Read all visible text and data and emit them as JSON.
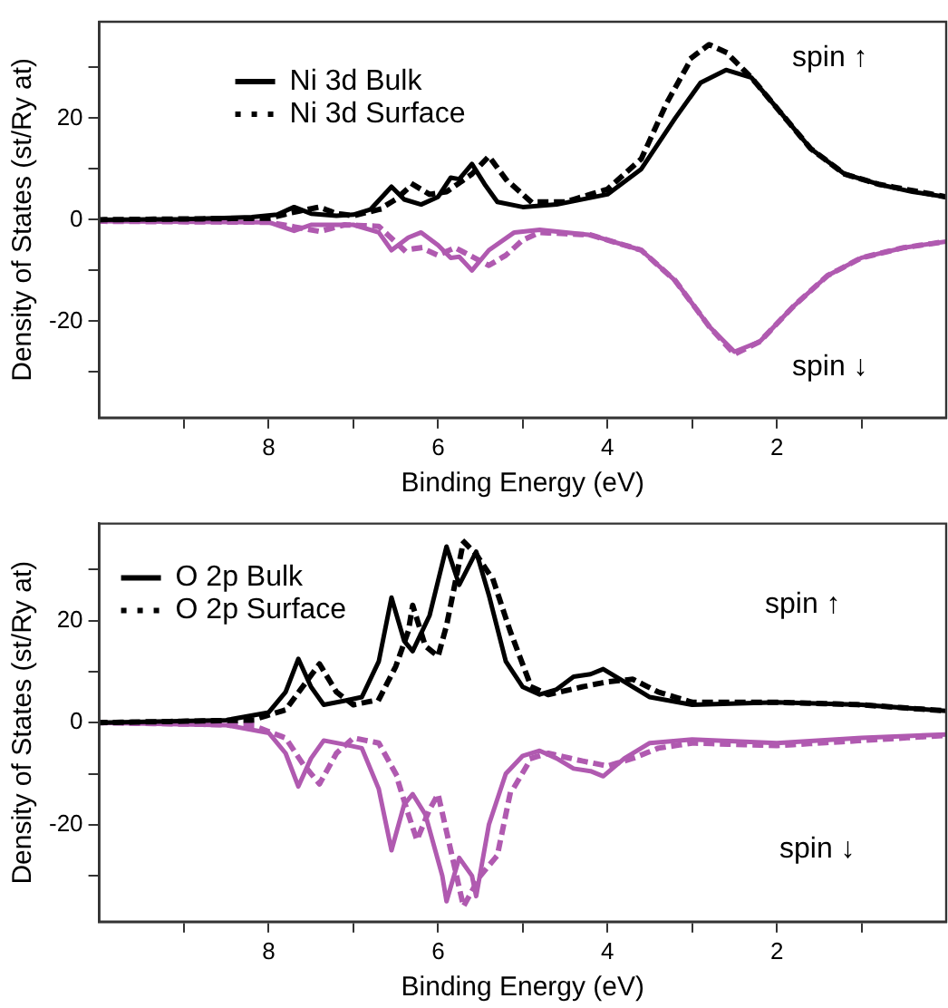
{
  "chart_data": [
    {
      "type": "line",
      "xlabel": "Binding Energy (eV)",
      "ylabel": "Density of States (st/Ry at)",
      "xlim": [
        10,
        0
      ],
      "ylim": [
        -39,
        39
      ],
      "xticks": [
        {
          "value": 9,
          "label": null
        },
        8,
        {
          "value": 7,
          "label": null
        },
        6,
        {
          "value": 5,
          "label": null
        },
        4,
        {
          "value": 3,
          "label": null
        },
        2,
        {
          "value": 1,
          "label": null
        }
      ],
      "yticks": [
        {
          "value": -30,
          "label": null
        },
        -20,
        {
          "value": -10,
          "label": null
        },
        0,
        {
          "value": 10,
          "label": null
        },
        20,
        {
          "value": 30,
          "label": null
        }
      ],
      "grid": false,
      "legend": "top left",
      "marker": "none",
      "annotations": [
        "spin ↑",
        "spin ↓"
      ],
      "series": [
        {
          "name": "Ni 3d Bulk",
          "color": "#000000",
          "line_style": "solid",
          "x": [
            10,
            9,
            8.2,
            7.9,
            7.7,
            7.5,
            7.2,
            7,
            6.8,
            6.55,
            6.4,
            6.2,
            6.0,
            5.85,
            5.75,
            5.6,
            5.45,
            5.3,
            5.0,
            4.6,
            4.0,
            3.6,
            3.2,
            2.9,
            2.6,
            2.3,
            2.0,
            1.6,
            1.2,
            0.8,
            0.4,
            0
          ],
          "values": [
            0,
            0.1,
            0.5,
            1,
            2.5,
            1.2,
            0.8,
            1,
            2,
            6.5,
            4,
            3,
            4.5,
            8.3,
            8,
            11,
            7,
            3.5,
            2.5,
            3,
            5,
            10,
            20,
            27,
            29.5,
            28,
            22,
            14,
            9,
            7,
            5.5,
            4.5
          ]
        },
        {
          "name": "Ni 3d Surface",
          "color": "#000000",
          "line_style": "dotted",
          "x": [
            10,
            8,
            7.7,
            7.4,
            7.2,
            7,
            6.7,
            6.5,
            6.3,
            6.1,
            5.9,
            5.6,
            5.4,
            5.2,
            4.9,
            4.5,
            4.0,
            3.6,
            3.3,
            3.0,
            2.8,
            2.6,
            2.3,
            2.0,
            1.6,
            1.2,
            0.8,
            0
          ],
          "values": [
            0,
            0.3,
            1.5,
            2.5,
            1.2,
            0.8,
            2,
            4,
            7,
            5,
            5.5,
            9,
            12.5,
            8,
            3.5,
            3.5,
            6,
            12,
            23,
            32,
            34.5,
            33,
            28,
            22,
            14,
            9,
            7,
            4.5
          ]
        },
        {
          "color": "#b05ab0",
          "line_style": "solid",
          "x": [
            10,
            8,
            7.7,
            7.5,
            7,
            6.7,
            6.55,
            6.35,
            6.2,
            6.0,
            5.85,
            5.75,
            5.6,
            5.4,
            5.1,
            4.8,
            4.2,
            3.6,
            3.2,
            2.8,
            2.5,
            2.2,
            1.8,
            1.4,
            1.0,
            0.5,
            0
          ],
          "values": [
            -0.3,
            -0.5,
            -2.2,
            -1,
            -1,
            -2.5,
            -6,
            -3.5,
            -2.5,
            -5,
            -7.5,
            -7.3,
            -10,
            -6,
            -2.5,
            -2,
            -3,
            -6,
            -12,
            -21,
            -26,
            -24,
            -17,
            -11,
            -7.5,
            -5.5,
            -4.3
          ]
        },
        {
          "color": "#b05ab0",
          "line_style": "dotted",
          "x": [
            10,
            8,
            7.4,
            7.1,
            6.7,
            6.4,
            6.2,
            6.0,
            5.8,
            5.4,
            5.2,
            5.0,
            4.8,
            4.2,
            3.6,
            3.2,
            2.8,
            2.5,
            2.2,
            1.8,
            1.4,
            1.0,
            0.5,
            0
          ],
          "values": [
            -0.3,
            -0.5,
            -2.3,
            -1,
            -1.3,
            -6,
            -5.5,
            -7,
            -5.5,
            -9,
            -7,
            -4,
            -2.5,
            -3,
            -6,
            -12,
            -21,
            -26.5,
            -24,
            -17,
            -11,
            -7.5,
            -5.5,
            -4.3
          ]
        }
      ]
    },
    {
      "type": "line",
      "xlabel": "Binding Energy (eV)",
      "ylabel": "Density of States (st/Ry at)",
      "xlim": [
        10,
        0
      ],
      "ylim": [
        -39,
        39
      ],
      "xticks": [
        {
          "value": 9,
          "label": null
        },
        8,
        {
          "value": 7,
          "label": null
        },
        6,
        {
          "value": 5,
          "label": null
        },
        4,
        {
          "value": 3,
          "label": null
        },
        2,
        {
          "value": 1,
          "label": null
        }
      ],
      "yticks": [
        {
          "value": -30,
          "label": null
        },
        -20,
        {
          "value": -10,
          "label": null
        },
        0,
        {
          "value": 10,
          "label": null
        },
        20,
        {
          "value": 30,
          "label": null
        }
      ],
      "grid": false,
      "legend": "top left",
      "marker": "none",
      "annotations": [
        "spin ↑",
        "spin ↓"
      ],
      "series": [
        {
          "name": "O 2p Bulk",
          "color": "#000000",
          "line_style": "solid",
          "x": [
            10,
            8.5,
            8.0,
            7.8,
            7.65,
            7.5,
            7.35,
            7.1,
            6.9,
            6.7,
            6.55,
            6.4,
            6.3,
            6.1,
            5.9,
            5.75,
            5.55,
            5.4,
            5.2,
            5.0,
            4.8,
            4.6,
            4.4,
            4.2,
            4.05,
            3.8,
            3.5,
            3.0,
            2.0,
            1.0,
            0
          ],
          "values": [
            0,
            0.5,
            2,
            6,
            12.5,
            7,
            3.5,
            4.3,
            5,
            12,
            24.5,
            16,
            14,
            21,
            34.5,
            27,
            33.5,
            25,
            12,
            7,
            5.5,
            6.5,
            9,
            9.5,
            10.5,
            8,
            5,
            3.5,
            4,
            3.5,
            2.3
          ]
        },
        {
          "name": "O 2p Surface",
          "color": "#000000",
          "line_style": "dotted",
          "x": [
            10,
            8.2,
            7.8,
            7.6,
            7.4,
            7.2,
            7.0,
            6.7,
            6.5,
            6.35,
            6.3,
            6.15,
            6.0,
            5.9,
            5.7,
            5.55,
            5.35,
            5.15,
            4.9,
            4.7,
            4.3,
            4.0,
            3.7,
            3.4,
            3.0,
            2,
            1,
            0
          ],
          "values": [
            0,
            0.5,
            2.5,
            7,
            11.5,
            6,
            3.5,
            4.5,
            11,
            18,
            23,
            15,
            13,
            19,
            35.5,
            33,
            28,
            18,
            7,
            5.5,
            7,
            8,
            8.5,
            6,
            4,
            4,
            3.5,
            2.3
          ]
        },
        {
          "color": "#b05ab0",
          "line_style": "solid",
          "x": [
            10,
            8.5,
            8.0,
            7.8,
            7.65,
            7.5,
            7.35,
            7.1,
            6.9,
            6.7,
            6.55,
            6.4,
            6.3,
            6.15,
            5.95,
            5.9,
            5.75,
            5.6,
            5.55,
            5.4,
            5.2,
            5.0,
            4.8,
            4.6,
            4.4,
            4.2,
            4.05,
            3.8,
            3.5,
            3.0,
            2.0,
            1.0,
            0
          ],
          "values": [
            0,
            -0.5,
            -2,
            -6,
            -12.5,
            -7,
            -3.5,
            -4.3,
            -5,
            -13,
            -25,
            -16,
            -14,
            -18,
            -30,
            -35,
            -26.5,
            -30,
            -34,
            -20,
            -10,
            -6.5,
            -5.5,
            -7,
            -9,
            -9.5,
            -10.5,
            -7,
            -4,
            -3.3,
            -4,
            -3,
            -2.3
          ]
        },
        {
          "color": "#b05ab0",
          "line_style": "dotted",
          "x": [
            10,
            8.2,
            7.8,
            7.6,
            7.4,
            7.2,
            7.0,
            6.7,
            6.5,
            6.35,
            6.25,
            6.1,
            6.0,
            5.85,
            5.7,
            5.5,
            5.3,
            5.15,
            4.9,
            4.7,
            4.3,
            4.0,
            3.7,
            3.4,
            3.0,
            2,
            1,
            0
          ],
          "values": [
            0,
            -0.5,
            -3,
            -8,
            -12,
            -6,
            -3,
            -4,
            -10,
            -18,
            -23,
            -17,
            -14,
            -25,
            -36,
            -30,
            -26,
            -14,
            -7,
            -6,
            -7.5,
            -8.5,
            -7,
            -5,
            -4,
            -4.5,
            -3.5,
            -2.5
          ]
        }
      ]
    }
  ]
}
